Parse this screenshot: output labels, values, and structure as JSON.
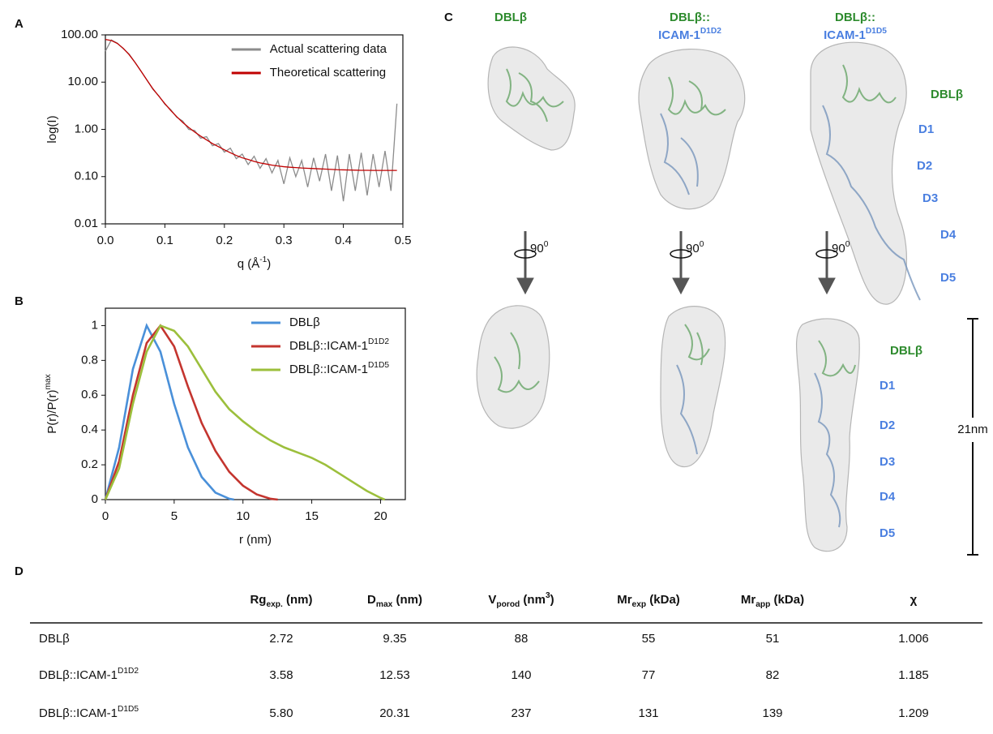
{
  "chart_data": [
    {
      "type": "line",
      "panel": "A",
      "log_y": true,
      "legend": "upper right",
      "xlabel": "q (Å",
      "xlabel_sup": "-1",
      "xlabel_tail": ")",
      "ylabel": "log(I)",
      "xlim": [
        0,
        0.5
      ],
      "ylim": [
        0.01,
        100
      ],
      "xticks": [
        {
          "value": 0,
          "label": "0.0"
        },
        0.1,
        0.2,
        0.3,
        0.4,
        0.5
      ],
      "yticks": [
        {
          "value": 100,
          "label": "100.00"
        },
        {
          "value": 10,
          "label": "10.00"
        },
        {
          "value": 1,
          "label": "1.00"
        },
        {
          "value": 0.1,
          "label": "0.10"
        },
        0.01
      ],
      "x": [
        0,
        0.01,
        0.02,
        0.03,
        0.04,
        0.05,
        0.06,
        0.07,
        0.08,
        0.09,
        0.1,
        0.11,
        0.12,
        0.13,
        0.14,
        0.15,
        0.16,
        0.17,
        0.18,
        0.19,
        0.2,
        0.21,
        0.22,
        0.23,
        0.24,
        0.25,
        0.26,
        0.27,
        0.28,
        0.29,
        0.3,
        0.31,
        0.32,
        0.33,
        0.34,
        0.35,
        0.36,
        0.37,
        0.38,
        0.39,
        0.4,
        0.41,
        0.42,
        0.43,
        0.44,
        0.45,
        0.46,
        0.47,
        0.48,
        0.49
      ],
      "series": [
        {
          "name": "Actual scattering data",
          "color": "#8c8c8c",
          "values": [
            45,
            78,
            67,
            51,
            39,
            26,
            17,
            11,
            7.0,
            5.1,
            3.4,
            2.6,
            1.8,
            1.5,
            1.0,
            0.95,
            0.65,
            0.7,
            0.45,
            0.5,
            0.33,
            0.4,
            0.24,
            0.3,
            0.18,
            0.27,
            0.15,
            0.24,
            0.12,
            0.22,
            0.07,
            0.25,
            0.1,
            0.22,
            0.06,
            0.25,
            0.08,
            0.3,
            0.05,
            0.28,
            0.03,
            0.3,
            0.05,
            0.32,
            0.04,
            0.3,
            0.06,
            0.35,
            0.05,
            3.5
          ]
        },
        {
          "name": "Theoretical scattering",
          "color": "#c00000",
          "values": [
            80,
            76,
            66,
            52,
            38,
            26,
            17,
            11,
            7.2,
            5.0,
            3.5,
            2.5,
            1.85,
            1.4,
            1.1,
            0.88,
            0.72,
            0.6,
            0.5,
            0.43,
            0.37,
            0.32,
            0.28,
            0.25,
            0.23,
            0.21,
            0.195,
            0.185,
            0.175,
            0.168,
            0.162,
            0.158,
            0.155,
            0.152,
            0.15,
            0.148,
            0.146,
            0.144,
            0.142,
            0.14,
            0.139,
            0.138,
            0.137,
            0.136,
            0.136,
            0.135,
            0.135,
            0.135,
            0.135,
            0.135
          ]
        }
      ]
    },
    {
      "type": "line",
      "panel": "B",
      "log_y": false,
      "legend": "upper right",
      "xlabel": "r (nm)",
      "ylabel": "P(r)/P(r)",
      "ylabel_sup": "max",
      "xlim": [
        0,
        21.8
      ],
      "ylim": [
        0,
        1.1
      ],
      "xticks": [
        0,
        5,
        10,
        15,
        20
      ],
      "yticks": [
        0,
        0.2,
        0.4,
        0.6,
        0.8,
        1
      ],
      "series": [
        {
          "name": "DBLβ",
          "color": "#4a90d9",
          "x": [
            0,
            1,
            2,
            3,
            4,
            5,
            6,
            7,
            8,
            9,
            9.35
          ],
          "values": [
            0,
            0.3,
            0.75,
            1.0,
            0.85,
            0.55,
            0.3,
            0.13,
            0.04,
            0.005,
            0
          ]
        },
        {
          "name": "DBLβ::ICAM-1",
          "name_sup": "D1D2",
          "color": "#c4352f",
          "x": [
            0,
            1,
            2,
            3,
            4,
            5,
            6,
            7,
            8,
            9,
            10,
            11,
            12,
            12.53
          ],
          "values": [
            0,
            0.22,
            0.6,
            0.9,
            1.0,
            0.88,
            0.65,
            0.44,
            0.28,
            0.16,
            0.08,
            0.03,
            0.005,
            0
          ]
        },
        {
          "name": "DBLβ::ICAM-1",
          "name_sup": "D1D5",
          "color": "#9cbf3c",
          "x": [
            0,
            1,
            2,
            3,
            4,
            5,
            6,
            7,
            8,
            9,
            10,
            11,
            12,
            13,
            14,
            15,
            16,
            17,
            18,
            19,
            20,
            20.31
          ],
          "values": [
            0,
            0.18,
            0.55,
            0.85,
            1.0,
            0.97,
            0.88,
            0.75,
            0.62,
            0.52,
            0.45,
            0.39,
            0.34,
            0.3,
            0.27,
            0.24,
            0.2,
            0.15,
            0.1,
            0.05,
            0.01,
            0
          ]
        }
      ]
    }
  ],
  "panel_c": {
    "panel": "C",
    "columns": [
      {
        "title": "DBLβ"
      },
      {
        "title": "DBLβ::",
        "subtitle": "ICAM-1",
        "sup": "D1D2"
      },
      {
        "title": "DBLβ::",
        "subtitle": "ICAM-1",
        "sup": "D1D5"
      }
    ],
    "rotation": "90",
    "rotation_sup": "0",
    "domains": [
      "DBLβ",
      "D1",
      "D2",
      "D3",
      "D4",
      "D5"
    ],
    "scale": "21nm"
  },
  "table": {
    "panel": "D",
    "header": [
      {
        "base": "Rg",
        "sub": "exp.",
        "unit": " (nm)"
      },
      {
        "base": "D",
        "sub": "max",
        "unit": " (nm)"
      },
      {
        "base": "V",
        "sub": "porod",
        "unit": " (nm",
        "sup": "3",
        "tail": ")"
      },
      {
        "base": "Mr",
        "sub": "exp",
        "unit": " (kDa)"
      },
      {
        "base": "Mr",
        "sub": "app",
        "unit": " (kDa)"
      },
      {
        "base": "χ"
      }
    ],
    "rows": [
      {
        "name": "DBLβ",
        "cells": [
          "2.72",
          "9.35",
          "88",
          "55",
          "51",
          "1.006"
        ]
      },
      {
        "name": "DBLβ::ICAM-1",
        "sup": "D1D2",
        "cells": [
          "3.58",
          "12.53",
          "140",
          "77",
          "82",
          "1.185"
        ]
      },
      {
        "name": "DBLβ::ICAM-1",
        "sup": "D1D5",
        "cells": [
          "5.80",
          "20.31",
          "237",
          "131",
          "139",
          "1.209"
        ]
      }
    ]
  }
}
